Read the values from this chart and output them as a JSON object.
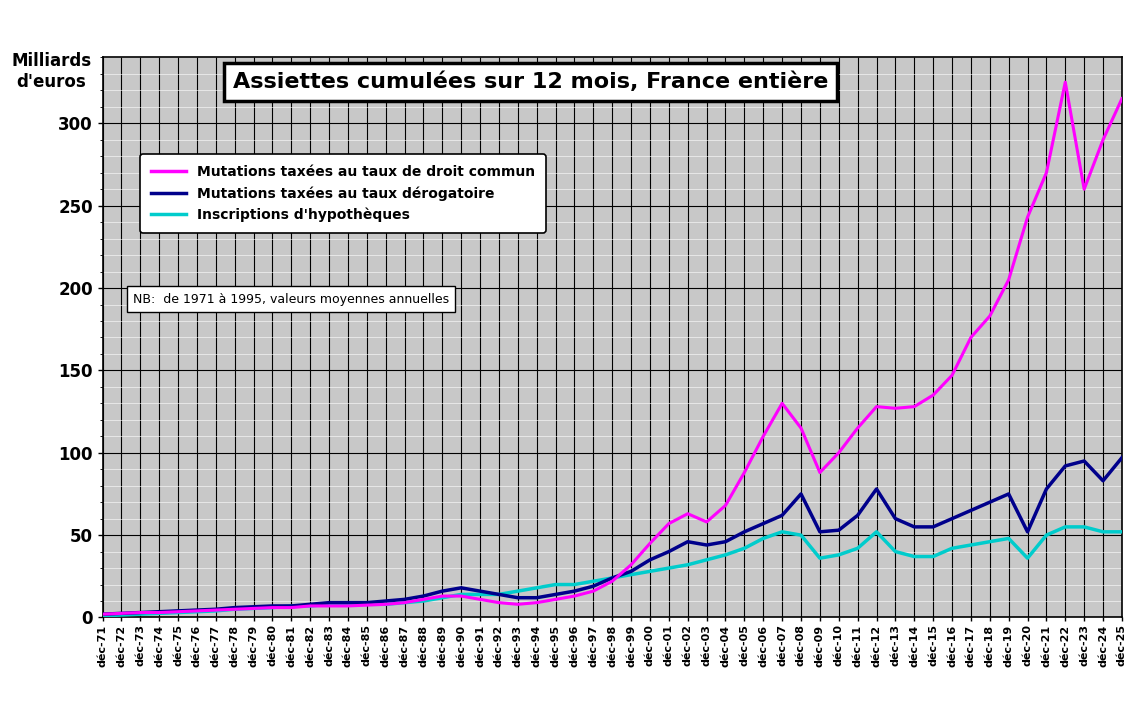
{
  "title": "Assiettes cumulées sur 12 mois, France entière",
  "ylabel_box": "Milliards\nd'euros",
  "note": "NB:  de 1971 à 1995, valeurs moyennes annuelles",
  "legend": [
    "Mutations taxées au taux de droit commun",
    "Mutations taxées au taux dérogatoire",
    "Inscriptions d'hypothèques"
  ],
  "colors": [
    "#FF00FF",
    "#00008B",
    "#00CCCC"
  ],
  "bg_color": "#C8C8C8",
  "ylim": [
    0,
    340
  ],
  "yticks": [
    0,
    50,
    100,
    150,
    200,
    250,
    300
  ],
  "years": [
    1971,
    1972,
    1973,
    1974,
    1975,
    1976,
    1977,
    1978,
    1979,
    1980,
    1981,
    1982,
    1983,
    1984,
    1985,
    1986,
    1987,
    1988,
    1989,
    1990,
    1991,
    1992,
    1993,
    1994,
    1995,
    1996,
    1997,
    1998,
    1999,
    2000,
    2001,
    2002,
    2003,
    2004,
    2005,
    2006,
    2007,
    2008,
    2009,
    2010,
    2011,
    2012,
    2013,
    2014,
    2015,
    2016,
    2017,
    2018,
    2019,
    2020,
    2021,
    2022,
    2023,
    2024,
    2025
  ],
  "magenta": [
    2,
    2.5,
    3,
    3,
    3.5,
    4,
    4.5,
    5,
    5.5,
    6,
    6,
    7,
    7,
    7,
    7.5,
    8,
    9,
    11,
    13,
    13,
    11,
    9,
    8,
    9,
    11,
    13,
    16,
    22,
    32,
    45,
    57,
    63,
    58,
    68,
    88,
    110,
    130,
    115,
    88,
    100,
    115,
    128,
    127,
    128,
    135,
    147,
    170,
    183,
    205,
    243,
    270,
    325,
    260,
    290,
    315
  ],
  "darkblue": [
    2,
    2.5,
    3,
    3.5,
    4,
    4.5,
    5,
    6,
    6.5,
    7,
    7,
    8,
    9,
    9,
    9,
    10,
    11,
    13,
    16,
    18,
    16,
    14,
    12,
    12,
    14,
    16,
    19,
    24,
    28,
    35,
    40,
    46,
    44,
    46,
    52,
    57,
    62,
    75,
    52,
    53,
    62,
    78,
    60,
    55,
    55,
    60,
    65,
    70,
    75,
    52,
    78,
    92,
    95,
    83,
    97
  ],
  "cyan": [
    1,
    1.5,
    2,
    2.5,
    3,
    3.5,
    4,
    5,
    5.5,
    6,
    7,
    7,
    8,
    8,
    8,
    8,
    9,
    10,
    12,
    14,
    14,
    14,
    16,
    18,
    20,
    20,
    22,
    24,
    26,
    28,
    30,
    32,
    35,
    38,
    42,
    48,
    52,
    50,
    36,
    38,
    42,
    52,
    40,
    37,
    37,
    42,
    44,
    46,
    48,
    36,
    50,
    55,
    55,
    52,
    52
  ]
}
